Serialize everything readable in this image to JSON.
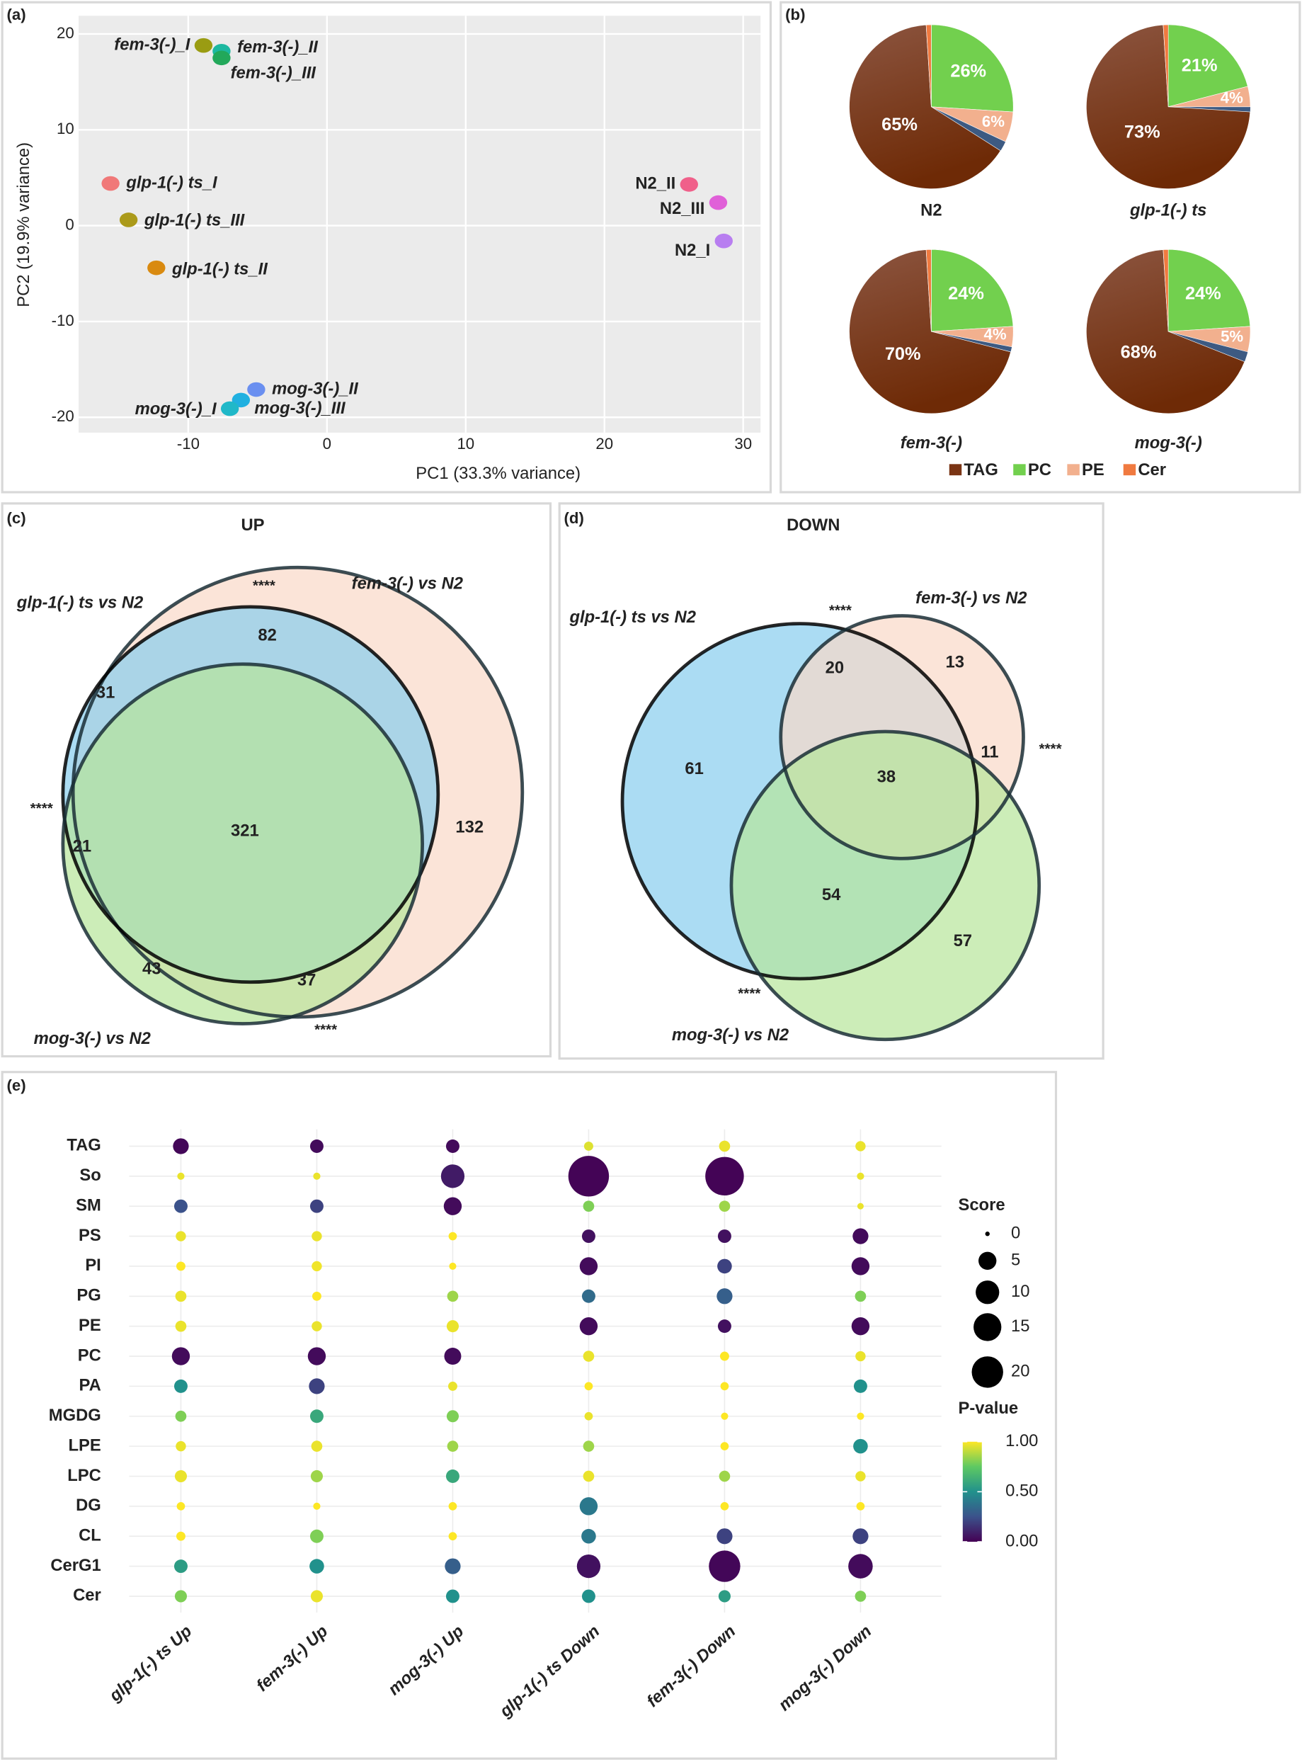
{
  "chart_data": [
    {
      "type": "scatter",
      "panel": "(a)",
      "x_label": "PC1 (33.3% variance)",
      "y_label": "PC2 (19.9% variance)",
      "xlim": [
        -17.9,
        31.25
      ],
      "ylim": [
        -21.6,
        21.9
      ],
      "xticks": [
        -10,
        0,
        10,
        20,
        30
      ],
      "yticks": [
        -20,
        -10,
        0,
        10,
        20
      ],
      "grid": true,
      "series": [
        {
          "name": "fem-3(-)_I",
          "color": "#9a9c12",
          "x": [
            -8.9
          ],
          "y": [
            18.8
          ]
        },
        {
          "name": "fem-3(-)_II",
          "color": "#1cb8a0",
          "x": [
            -7.6
          ],
          "y": [
            18.2
          ]
        },
        {
          "name": "fem-3(-)_III",
          "color": "#22a85a",
          "x": [
            -7.6
          ],
          "y": [
            17.5
          ]
        },
        {
          "name": "glp-1(-) ts_I",
          "color": "#f07878",
          "x": [
            -15.6
          ],
          "y": [
            4.4
          ]
        },
        {
          "name": "glp-1(-) ts_III",
          "color": "#ab9a1a",
          "x": [
            -14.3
          ],
          "y": [
            0.6
          ]
        },
        {
          "name": "glp-1(-) ts_II",
          "color": "#d98a10",
          "x": [
            -12.3
          ],
          "y": [
            -4.4
          ]
        },
        {
          "name": "N2_II",
          "color": "#f0608a",
          "x": [
            26.1
          ],
          "y": [
            4.3
          ]
        },
        {
          "name": "N2_III",
          "color": "#e060d8",
          "x": [
            28.2
          ],
          "y": [
            2.4
          ]
        },
        {
          "name": "N2_I",
          "color": "#b87ef0",
          "x": [
            28.6
          ],
          "y": [
            -1.6
          ]
        },
        {
          "name": "mog-3(-)_II",
          "color": "#6a8ff0",
          "x": [
            -5.1
          ],
          "y": [
            -17.1
          ]
        },
        {
          "name": "mog-3(-)_III",
          "color": "#20b0e0",
          "x": [
            -6.2
          ],
          "y": [
            -18.2
          ]
        },
        {
          "name": "mog-3(-)_I",
          "color": "#20b8c8",
          "x": [
            -7.0
          ],
          "y": [
            -19.1
          ]
        }
      ]
    },
    {
      "type": "pie",
      "panel": "(b)",
      "categories": [
        "TAG",
        "PC",
        "PE",
        "Cer"
      ],
      "colors": [
        "#7a3414",
        "#72d04e",
        "#f2b08e",
        "#f07a40"
      ],
      "pies": [
        {
          "title": "N2",
          "values": [
            65,
            26,
            6,
            1
          ],
          "value_labels": [
            "65%",
            "26%",
            "6%",
            null
          ]
        },
        {
          "title": "glp-1(-) ts",
          "values": [
            73,
            21,
            4,
            1
          ],
          "value_labels": [
            "73%",
            "21%",
            "4%",
            null
          ]
        },
        {
          "title": "fem-3(-)",
          "values": [
            70,
            24,
            4,
            1
          ],
          "value_labels": [
            "70%",
            "24%",
            "4%",
            null
          ]
        },
        {
          "title": "mog-3(-)",
          "values": [
            68,
            24,
            5,
            1
          ],
          "value_labels": [
            "68%",
            "24%",
            "5%",
            null
          ]
        }
      ]
    },
    {
      "type": "venn",
      "panel": "(c)",
      "title": "UP",
      "sets": [
        {
          "name": "glp-1(-) ts vs N2",
          "color": "#87cdee"
        },
        {
          "name": "fem-3(-) vs N2",
          "color": "#f9d8c8"
        },
        {
          "name": "mog-3(-) vs N2",
          "color": "#b7e69a"
        }
      ],
      "regions": [
        82,
        31,
        21,
        321,
        132,
        43,
        37
      ],
      "annotations": [
        "****",
        "****",
        "****"
      ]
    },
    {
      "type": "venn",
      "panel": "(d)",
      "title": "DOWN",
      "sets": [
        {
          "name": "glp-1(-) ts vs N2",
          "color": "#87cdee"
        },
        {
          "name": "fem-3(-) vs N2",
          "color": "#f9d8c8"
        },
        {
          "name": "mog-3(-) vs N2",
          "color": "#b7e69a"
        }
      ],
      "regions": [
        20,
        13,
        61,
        38,
        11,
        54,
        57
      ],
      "annotations": [
        "****",
        "****",
        "****"
      ]
    },
    {
      "type": "dot",
      "panel": "(e)",
      "rows": [
        "TAG",
        "So",
        "SM",
        "PS",
        "PI",
        "PG",
        "PE",
        "PC",
        "PA",
        "MGDG",
        "LPE",
        "LPC",
        "DG",
        "CL",
        "CerG1",
        "Cer"
      ],
      "columns": [
        "glp-1(-) ts Up",
        "fem-3(-) Up",
        "mog-3(-) Up",
        "glp-1(-) ts Down",
        "fem-3(-) Down",
        "mog-3(-) Down"
      ],
      "score": [
        [
          3.5,
          2.2,
          2.2,
          0.6,
          1.2,
          0.9
        ],
        [
          0.2,
          0.2,
          10,
          36,
          32,
          0.2
        ],
        [
          2.2,
          2.2,
          5,
          1.2,
          1.2,
          0.1
        ],
        [
          0.9,
          0.9,
          0.4,
          2.2,
          2.2,
          3.5
        ],
        [
          0.6,
          0.9,
          0.2,
          5,
          2.8,
          5
        ],
        [
          1.2,
          0.6,
          1.2,
          2.2,
          3.5,
          1.2
        ],
        [
          1.2,
          0.9,
          1.6,
          5,
          2.2,
          5
        ],
        [
          5,
          5,
          4.3,
          1.2,
          0.6,
          0.9
        ],
        [
          2.2,
          3.5,
          0.6,
          0.4,
          0.4,
          2.2
        ],
        [
          1.2,
          2.2,
          1.6,
          0.4,
          0.2,
          0.2
        ],
        [
          0.9,
          1.2,
          1.2,
          1.2,
          0.4,
          2.8
        ],
        [
          1.6,
          1.6,
          2.2,
          1.2,
          1.2,
          0.9
        ],
        [
          0.4,
          0.2,
          0.4,
          5,
          0.4,
          0.4
        ],
        [
          0.6,
          2.2,
          0.4,
          2.8,
          3.5,
          3.5
        ],
        [
          2.2,
          2.8,
          3.5,
          10,
          20,
          11
        ],
        [
          1.6,
          1.6,
          2.2,
          2.2,
          1.6,
          1.2
        ]
      ],
      "p_value": [
        [
          0.02,
          0.03,
          0.03,
          0.95,
          0.97,
          0.97
        ],
        [
          0.97,
          0.97,
          0.08,
          0.01,
          0.01,
          0.97
        ],
        [
          0.25,
          0.2,
          0.03,
          0.8,
          0.85,
          0.97
        ],
        [
          0.97,
          0.97,
          1.0,
          0.05,
          0.05,
          0.03
        ],
        [
          1.0,
          0.98,
          1.0,
          0.03,
          0.2,
          0.03
        ],
        [
          0.97,
          1.0,
          0.85,
          0.35,
          0.3,
          0.8
        ],
        [
          0.97,
          0.97,
          0.97,
          0.03,
          0.05,
          0.03
        ],
        [
          0.03,
          0.03,
          0.03,
          0.97,
          1.0,
          0.97
        ],
        [
          0.5,
          0.2,
          0.97,
          1.0,
          1.0,
          0.5
        ],
        [
          0.8,
          0.6,
          0.8,
          0.97,
          1.0,
          1.0
        ],
        [
          0.97,
          0.97,
          0.85,
          0.85,
          1.0,
          0.5
        ],
        [
          0.97,
          0.85,
          0.6,
          0.97,
          0.85,
          0.97
        ],
        [
          1.0,
          1.0,
          1.0,
          0.4,
          1.0,
          1.0
        ],
        [
          1.0,
          0.8,
          1.0,
          0.4,
          0.2,
          0.2
        ],
        [
          0.55,
          0.5,
          0.3,
          0.05,
          0.02,
          0.03
        ],
        [
          0.8,
          0.97,
          0.5,
          0.5,
          0.55,
          0.8
        ]
      ],
      "size_legend": {
        "title": "Score",
        "ticks": [
          0,
          5,
          10,
          15,
          20
        ]
      },
      "color_legend": {
        "title": "P-value",
        "ticks": [
          {
            "value": 1,
            "label": "1.00"
          },
          {
            "value": 0.5,
            "label": "0.50"
          },
          {
            "value": 0,
            "label": "0.00"
          }
        ]
      }
    }
  ]
}
